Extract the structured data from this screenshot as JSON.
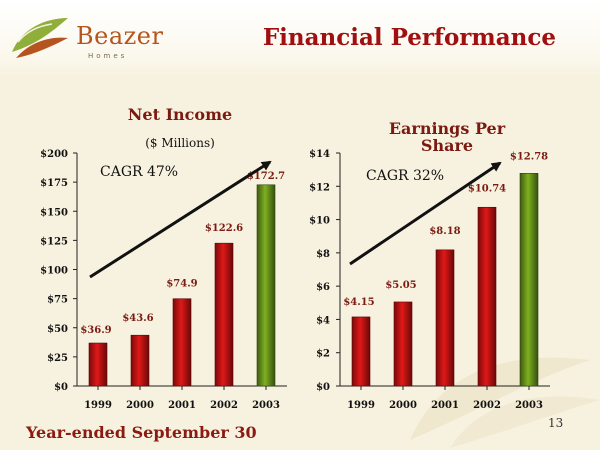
{
  "header": {
    "brand": "Beazer",
    "brand_sub": "Homes",
    "title": "Financial Performance"
  },
  "footer": {
    "label": "Year-ended September 30",
    "page_number": "13"
  },
  "chart_data": [
    {
      "type": "bar",
      "title": "Net Income",
      "subtitle": "($ Millions)",
      "categories": [
        "1999",
        "2000",
        "2001",
        "2002",
        "2003"
      ],
      "values": [
        36.9,
        43.6,
        74.9,
        122.6,
        172.7
      ],
      "data_labels": [
        "$36.9",
        "$43.6",
        "$74.9",
        "$122.6",
        "$172.7"
      ],
      "ylim": [
        0,
        200
      ],
      "yticks": [
        0,
        25,
        50,
        75,
        100,
        125,
        150,
        175,
        200
      ],
      "ytick_labels": [
        "$0",
        "$25",
        "$50",
        "$75",
        "$100",
        "$125",
        "$150",
        "$175",
        "$200"
      ],
      "annotation": "CAGR 47%",
      "colors": {
        "bar": "#e01818",
        "last_bar": "#7fb020"
      },
      "grid": false,
      "legend": "none"
    },
    {
      "type": "bar",
      "title": "Earnings Per Share",
      "subtitle": "",
      "categories": [
        "1999",
        "2000",
        "2001",
        "2002",
        "2003"
      ],
      "values": [
        4.15,
        5.05,
        8.18,
        10.74,
        12.78
      ],
      "data_labels": [
        "$4.15",
        "$5.05",
        "$8.18",
        "$10.74",
        "$12.78"
      ],
      "ylim": [
        0,
        14
      ],
      "yticks": [
        0,
        2,
        4,
        6,
        8,
        10,
        12,
        14
      ],
      "ytick_labels": [
        "$0",
        "$2",
        "$4",
        "$6",
        "$8",
        "$10",
        "$12",
        "$14"
      ],
      "annotation": "CAGR 32%",
      "colors": {
        "bar": "#e01818",
        "last_bar": "#7fb020"
      },
      "grid": false,
      "legend": "none"
    }
  ]
}
